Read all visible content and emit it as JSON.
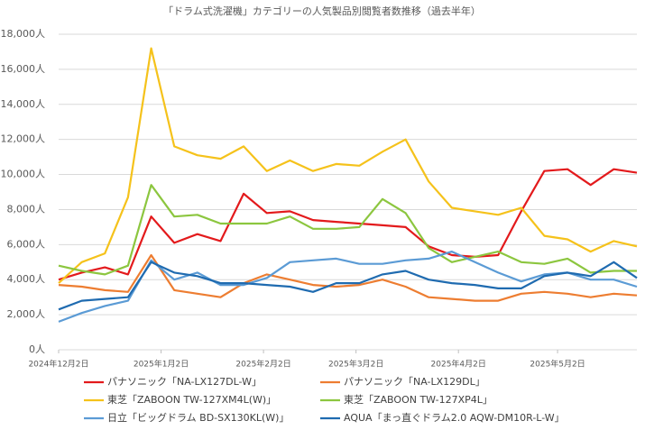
{
  "chart_data": {
    "type": "line",
    "title": "「ドラム式洗濯機」カテゴリーの人気製品別閲覧者数推移（過去半年）",
    "x": [
      "2024-12-02",
      "2024-12-09",
      "2024-12-16",
      "2024-12-23",
      "2024-12-30",
      "2025-01-06",
      "2025-01-13",
      "2025-01-20",
      "2025-01-27",
      "2025-02-03",
      "2025-02-10",
      "2025-02-17",
      "2025-02-24",
      "2025-03-03",
      "2025-03-10",
      "2025-03-17",
      "2025-03-24",
      "2025-03-31",
      "2025-04-07",
      "2025-04-14",
      "2025-04-21",
      "2025-04-28",
      "2025-05-05",
      "2025-05-12",
      "2025-05-19",
      "2025-05-26"
    ],
    "xlim": [
      "2024-12-02",
      "2025-05-26"
    ],
    "xticks": [
      {
        "value": "2024-12-02",
        "label": "2024年12月2日"
      },
      {
        "value": "2025-01-02",
        "label": "2025年1月2日"
      },
      {
        "value": "2025-02-02",
        "label": "2025年2月2日"
      },
      {
        "value": "2025-03-02",
        "label": "2025年3月2日"
      },
      {
        "value": "2025-04-02",
        "label": "2025年4月2日"
      },
      {
        "value": "2025-05-02",
        "label": "2025年5月2日"
      }
    ],
    "ylim": [
      0,
      18000
    ],
    "yticks": [
      {
        "value": 0,
        "label": "0人"
      },
      {
        "value": 2000,
        "label": "2,000人"
      },
      {
        "value": 4000,
        "label": "4,000人"
      },
      {
        "value": 6000,
        "label": "6,000人"
      },
      {
        "value": 8000,
        "label": "8,000人"
      },
      {
        "value": 10000,
        "label": "10,000人"
      },
      {
        "value": 12000,
        "label": "12,000人"
      },
      {
        "value": 14000,
        "label": "14,000人"
      },
      {
        "value": 16000,
        "label": "16,000人"
      },
      {
        "value": 18000,
        "label": "18,000人"
      }
    ],
    "grid": true,
    "legend": "bottom",
    "series": [
      {
        "name": "パナソニック「NA-LX127DL-W」",
        "color": "#e31a1c",
        "values": [
          4000,
          4400,
          4700,
          4300,
          7600,
          6100,
          6600,
          6200,
          8900,
          7800,
          7900,
          7400,
          7300,
          7200,
          7100,
          7000,
          5900,
          5400,
          5300,
          5400,
          7900,
          10200,
          10300,
          9400,
          10300,
          10100
        ]
      },
      {
        "name": "パナソニック「NA-LX129DL」",
        "color": "#ed7d31",
        "values": [
          3700,
          3600,
          3400,
          3300,
          5400,
          3400,
          3200,
          3000,
          3800,
          4300,
          4000,
          3700,
          3600,
          3700,
          4000,
          3600,
          3000,
          2900,
          2800,
          2800,
          3200,
          3300,
          3200,
          3000,
          3200,
          3100
        ]
      },
      {
        "name": "東芝「ZABOON TW-127XM4L(W)」",
        "color": "#f5c21b",
        "values": [
          3800,
          5000,
          5500,
          8700,
          17200,
          11600,
          11100,
          10900,
          11600,
          10200,
          10800,
          10200,
          10600,
          10500,
          11300,
          12000,
          9600,
          8100,
          7900,
          7700,
          8100,
          6500,
          6300,
          5600,
          6200,
          5900
        ]
      },
      {
        "name": "東芝「ZABOON TW-127XP4L」",
        "color": "#8cc63f",
        "values": [
          4800,
          4500,
          4300,
          4800,
          9400,
          7600,
          7700,
          7200,
          7200,
          7200,
          7600,
          6900,
          6900,
          7000,
          8600,
          7800,
          5800,
          5000,
          5300,
          5600,
          5000,
          4900,
          5200,
          4400,
          4500,
          4500
        ]
      },
      {
        "name": "日立「ビッグドラム BD-SX130KL(W)」",
        "color": "#5b9bd5",
        "values": [
          1600,
          2100,
          2500,
          2800,
          5100,
          4000,
          4400,
          3700,
          3700,
          4100,
          5000,
          5100,
          5200,
          4900,
          4900,
          5100,
          5200,
          5600,
          5000,
          4400,
          3900,
          4300,
          4400,
          4000,
          4000,
          3600
        ]
      },
      {
        "name": "AQUA「まっ直ぐドラム2.0 AQW-DM10R-L-W」",
        "color": "#1f6bb0",
        "values": [
          2300,
          2800,
          2900,
          3000,
          5000,
          4400,
          4200,
          3800,
          3800,
          3700,
          3600,
          3300,
          3800,
          3800,
          4300,
          4500,
          4000,
          3800,
          3700,
          3500,
          3500,
          4200,
          4400,
          4200,
          5000,
          4100
        ]
      }
    ]
  }
}
